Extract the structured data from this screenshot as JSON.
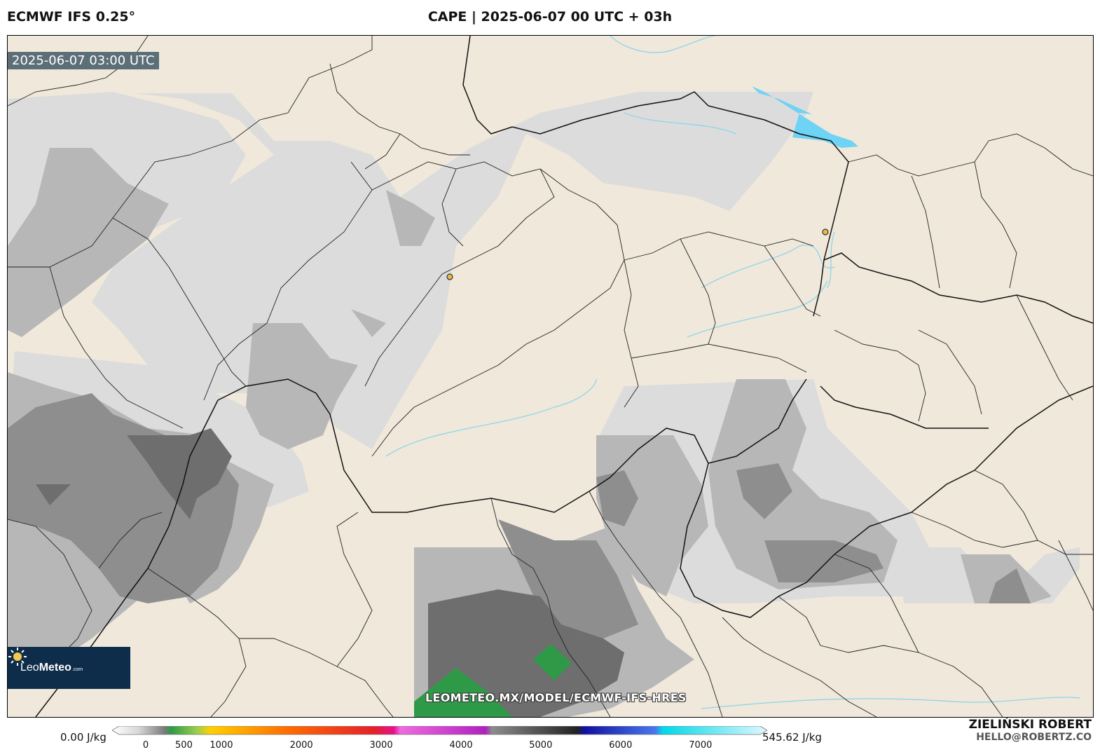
{
  "header": {
    "model_title": "ECMWF IFS 0.25°",
    "plot_title": "CAPE | 2025-06-07 00 UTC + 03h"
  },
  "map": {
    "valid_time": "2025-06-07 03:00 UTC",
    "watermark_url": "LEOMETEO.MX/MODEL/ECMWF-IFS-HRES",
    "logo_text_main": "Leo",
    "logo_text_bold": "Meteo",
    "logo_text_small": ".com",
    "land_color": "#f0e8da",
    "water_color": "#6fd3f5",
    "city_marker_color": "#e8b84a"
  },
  "colorbar": {
    "min_label": "0.00 J/kg",
    "max_label": "545.62 J/kg",
    "ticks": [
      "0",
      "500",
      "1000",
      "2000",
      "3000",
      "4000",
      "5000",
      "6000",
      "7000"
    ],
    "tick_values": [
      0,
      500,
      1000,
      2000,
      3000,
      4000,
      5000,
      6000,
      7000
    ],
    "range": [
      0,
      7000
    ],
    "units": "J/kg"
  },
  "footer": {
    "author": "ZIELIŃSKI ROBERT",
    "email": "HELLO@ROBERTZ.CO"
  }
}
